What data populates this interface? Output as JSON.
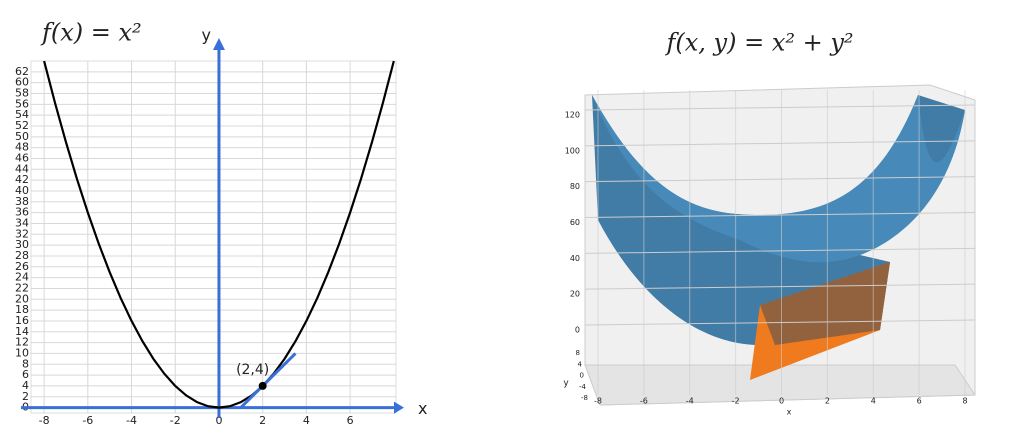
{
  "chart_data": [
    {
      "type": "line",
      "title": "f(x) = x²",
      "x_label": "x",
      "y_label": "y",
      "x": [
        -8,
        -7.5,
        -7,
        -6.5,
        -6,
        -5.5,
        -5,
        -4.5,
        -4,
        -3.5,
        -3,
        -2.5,
        -2,
        -1.5,
        -1,
        -0.5,
        0,
        0.5,
        1,
        1.5,
        2,
        2.5,
        3,
        3.5,
        4,
        4.5,
        5,
        5.5,
        6,
        6.5,
        7,
        7.5,
        8
      ],
      "values": [
        64,
        56.25,
        49,
        42.25,
        36,
        30.25,
        25,
        20.25,
        16,
        12.25,
        9,
        6.25,
        4,
        2.25,
        1,
        0.25,
        0,
        0.25,
        1,
        2.25,
        4,
        6.25,
        9,
        12.25,
        16,
        20.25,
        25,
        30.25,
        36,
        42.25,
        49,
        56.25,
        64
      ],
      "color": "#000000",
      "axis_color": "#3b6fd8",
      "xlim": [
        -8.6,
        8.1
      ],
      "ylim": [
        -1,
        64
      ],
      "xticks": [
        -8,
        -6,
        -4,
        -2,
        0,
        2,
        4,
        6
      ],
      "yticks": [
        0,
        2,
        4,
        6,
        8,
        10,
        12,
        14,
        16,
        18,
        20,
        22,
        24,
        26,
        28,
        30,
        32,
        34,
        36,
        38,
        40,
        42,
        44,
        46,
        48,
        50,
        52,
        54,
        56,
        58,
        60,
        62
      ],
      "grid": true,
      "tangent": {
        "x": [
          1,
          3.5
        ],
        "values": [
          0,
          10
        ],
        "color": "#3b6fd8"
      },
      "point": {
        "x": 2,
        "y": 4,
        "label": "(2,4)"
      }
    },
    {
      "type": "surface3d",
      "title": "f(x, y) = x² + y²",
      "x_label": "x",
      "y_label": "y",
      "xlim": [
        -8,
        8
      ],
      "xticks": [
        -8,
        -6,
        -4,
        -2,
        0,
        2,
        4,
        6,
        8
      ],
      "ylim": [
        -8,
        8
      ],
      "yticks": [
        -8,
        -4,
        0,
        4,
        8
      ],
      "zlim": [
        0,
        120
      ],
      "zticks": [
        0,
        20,
        40,
        60,
        80,
        100,
        120
      ],
      "surface_color": "#2e6f9e",
      "plane_color": "#f07a1e"
    }
  ]
}
